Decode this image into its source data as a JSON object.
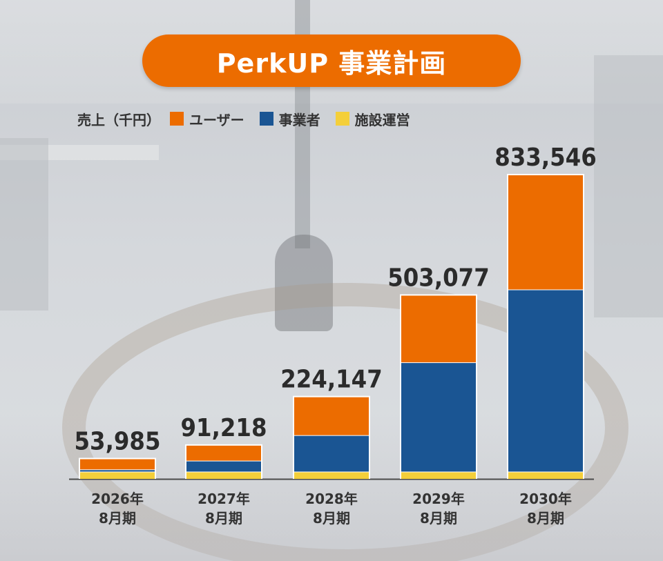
{
  "title": "PerkUP 事業計画",
  "legend": {
    "unit_label": "売上（千円）",
    "items": [
      {
        "label": "ユーザー",
        "color": "#ec6c00"
      },
      {
        "label": "事業者",
        "color": "#1a5593"
      },
      {
        "label": "施設運営",
        "color": "#f4cf3a"
      }
    ]
  },
  "chart_data": {
    "type": "bar",
    "stacked": true,
    "categories": [
      [
        "2026年",
        "8月期"
      ],
      [
        "2027年",
        "8月期"
      ],
      [
        "2028年",
        "8月期"
      ],
      [
        "2029年",
        "8月期"
      ],
      [
        "2030年",
        "8月期"
      ]
    ],
    "totals": [
      53985,
      91218,
      224147,
      503077,
      833546
    ],
    "total_labels": [
      "53,985",
      "91,218",
      "224,147",
      "503,077",
      "833,546"
    ],
    "series": [
      {
        "name": "施設運営",
        "color": "#f4cf3a",
        "values": [
          20000,
          20000,
          20000,
          20000,
          20000
        ]
      },
      {
        "name": "事業者",
        "color": "#1a5593",
        "values": [
          6000,
          30000,
          100000,
          300000,
          500000
        ]
      },
      {
        "name": "ユーザー",
        "color": "#ec6c00",
        "values": [
          27985,
          41218,
          104147,
          183077,
          313546
        ]
      }
    ],
    "ylim": [
      0,
      833546
    ]
  }
}
